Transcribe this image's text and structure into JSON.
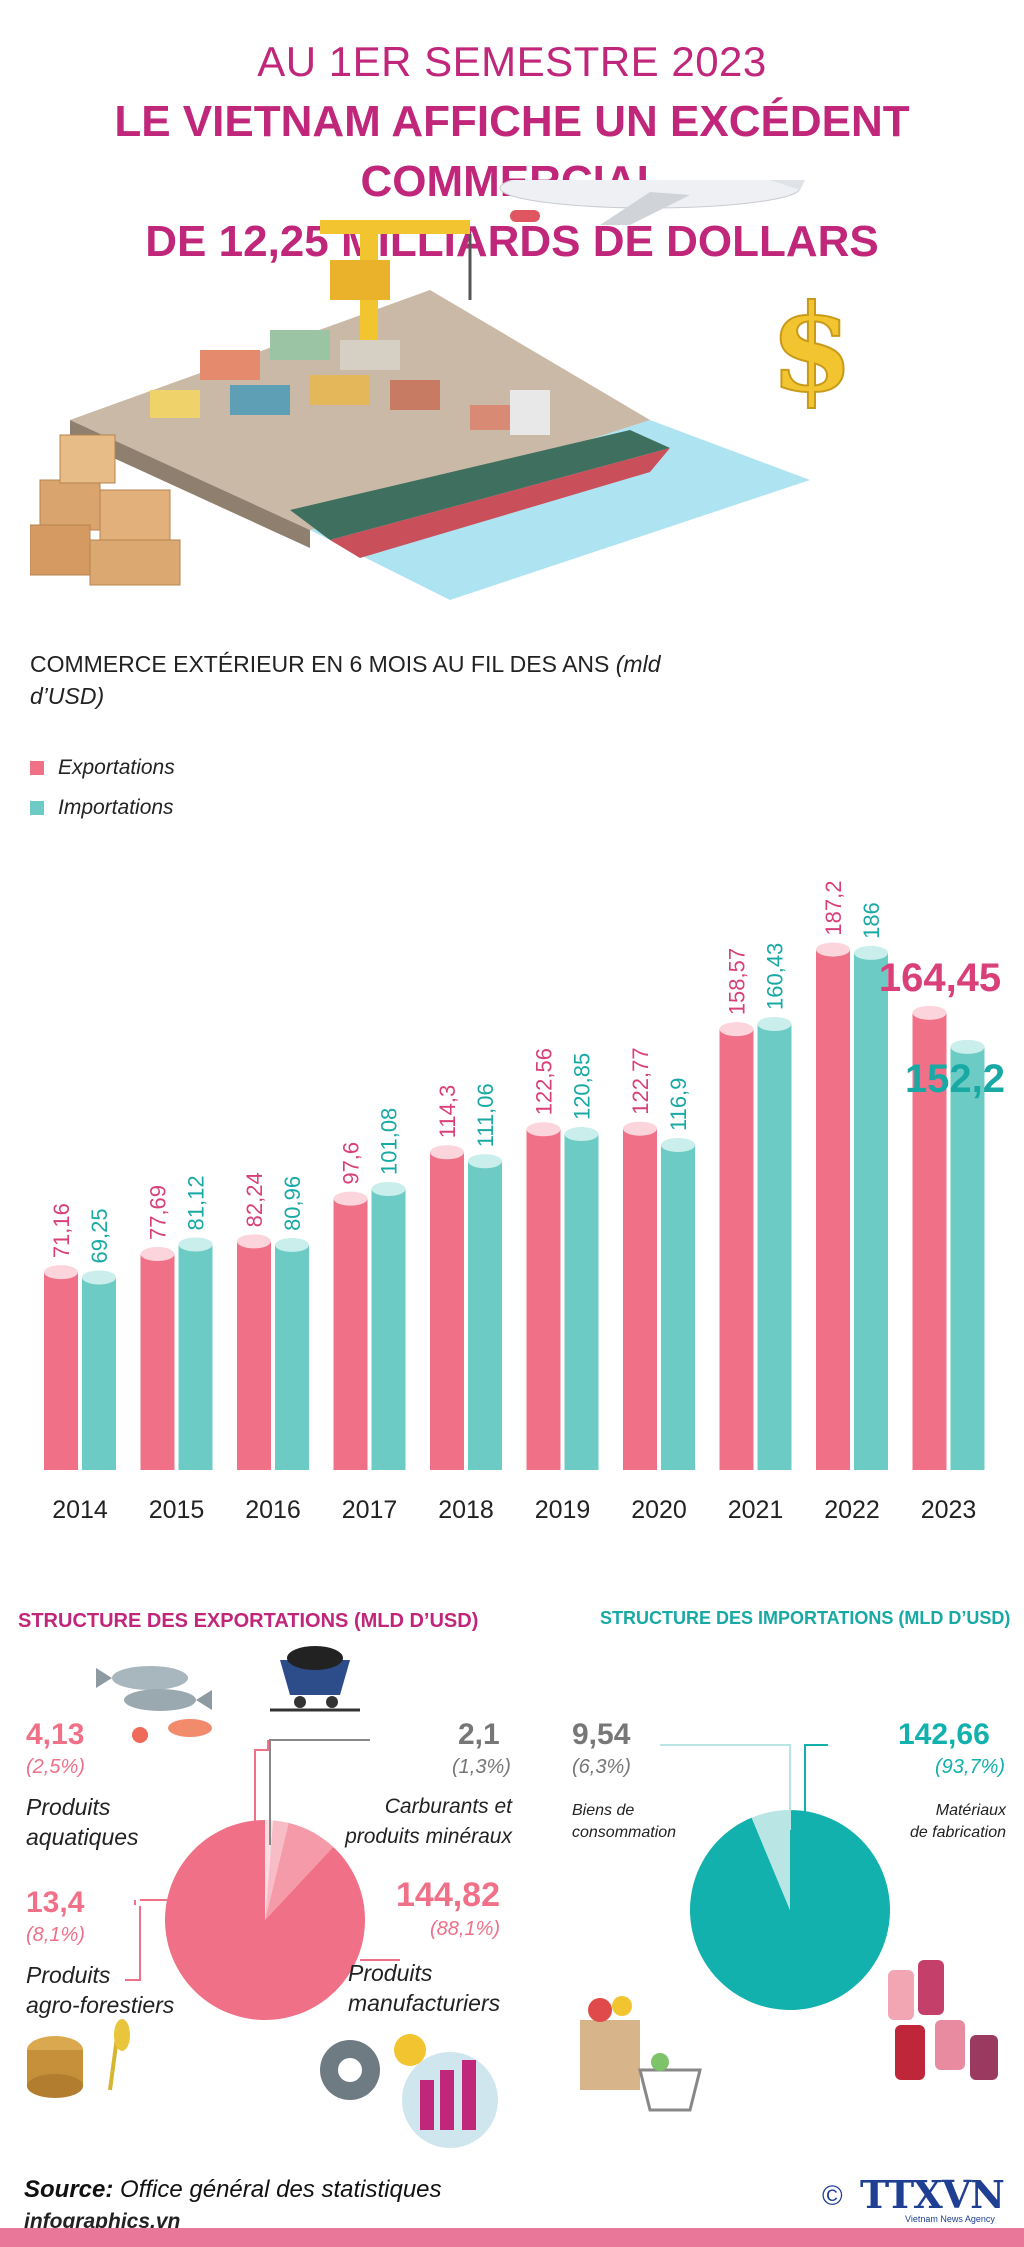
{
  "title": {
    "line1": "AU 1ER SEMESTRE 2023",
    "line2": "LE VIETNAM AFFICHE UN EXCÉDENT COMMERCIAL",
    "line3": "DE 12,25 MILLIARDS DE DOLLARS"
  },
  "chart_data": [
    {
      "type": "bar",
      "title": "COMMERCE EXTÉRIEUR EN 6 MOIS AU FIL DES ANS",
      "unit": "(mld d’USD)",
      "categories": [
        "2014",
        "2015",
        "2016",
        "2017",
        "2018",
        "2019",
        "2020",
        "2021",
        "2022",
        "2023"
      ],
      "series": [
        {
          "name": "Exportations",
          "color": "#f07088",
          "values": [
            71.16,
            77.69,
            82.24,
            97.6,
            114.3,
            122.56,
            122.77,
            158.57,
            187.2,
            164.45
          ],
          "labels": [
            "71,16",
            "77,69",
            "82,24",
            "97,6",
            "114,3",
            "122,56",
            "122,77",
            "158,57",
            "187,2",
            "164,45"
          ]
        },
        {
          "name": "Importations",
          "color": "#6ccbc4",
          "values": [
            69.25,
            81.12,
            80.96,
            101.08,
            111.06,
            120.85,
            116.9,
            160.43,
            186,
            152.2
          ],
          "labels": [
            "69,25",
            "81,12",
            "80,96",
            "101,08",
            "111,06",
            "120,85",
            "116,9",
            "160,43",
            "186",
            "152,2"
          ]
        }
      ],
      "legend_position": "top-left",
      "grid": false
    },
    {
      "type": "pie",
      "title": "STRUCTURE DES EXPORTATIONS (MLD D’USD)",
      "slices": [
        {
          "label": "Produits manufacturiers",
          "value": 144.82,
          "value_label": "144,82",
          "percent_label": "(88,1%)",
          "color": "#f07088"
        },
        {
          "label": "Produits agro-forestiers",
          "value": 13.4,
          "value_label": "13,4",
          "percent_label": "(8,1%)",
          "color": "#f49aa9"
        },
        {
          "label": "Produits aquatiques",
          "value": 4.13,
          "value_label": "4,13",
          "percent_label": "(2,5%)",
          "color": "#f8bcc6"
        },
        {
          "label": "Carburants et produits minéraux",
          "value": 2.1,
          "value_label": "2,1",
          "percent_label": "(1,3%)",
          "color": "#fcdde2"
        }
      ]
    },
    {
      "type": "pie",
      "title": "STRUCTURE DES IMPORTATIONS (MLD D’USD)",
      "slices": [
        {
          "label": "Matériaux de fabrication",
          "value": 142.66,
          "value_label": "142,66",
          "percent_label": "(93,7%)",
          "color": "#12b1ad"
        },
        {
          "label": "Biens de consommation",
          "value": 9.54,
          "value_label": "9,54",
          "percent_label": "(6,3%)",
          "color": "#b9e6e4"
        }
      ]
    }
  ],
  "labels": {
    "aquatic_1": "Produits",
    "aquatic_2": "aquatiques",
    "agro_1": "Produits",
    "agro_2": "agro-forestiers",
    "fuel_1": "Carburants et",
    "fuel_2": "produits minéraux",
    "manu_1": "Produits",
    "manu_2": "manufacturiers",
    "consumer_1": "Biens de",
    "consumer_2": "consommation",
    "materials_1": "Matériaux",
    "materials_2": "de fabrication"
  },
  "colors": {
    "accent": "#c0267a",
    "export": "#f07088",
    "import": "#6ccbc4",
    "import_dark": "#12b1ad",
    "export_title": "#c0267a",
    "import_title": "#19a9a5"
  },
  "footer": {
    "source_label": "Source:",
    "source_text": " Office général des statistiques",
    "site": "infographics.vn",
    "copyright": "©",
    "agency": "TTXVN",
    "agency_sub": "Vietnam News Agency"
  }
}
